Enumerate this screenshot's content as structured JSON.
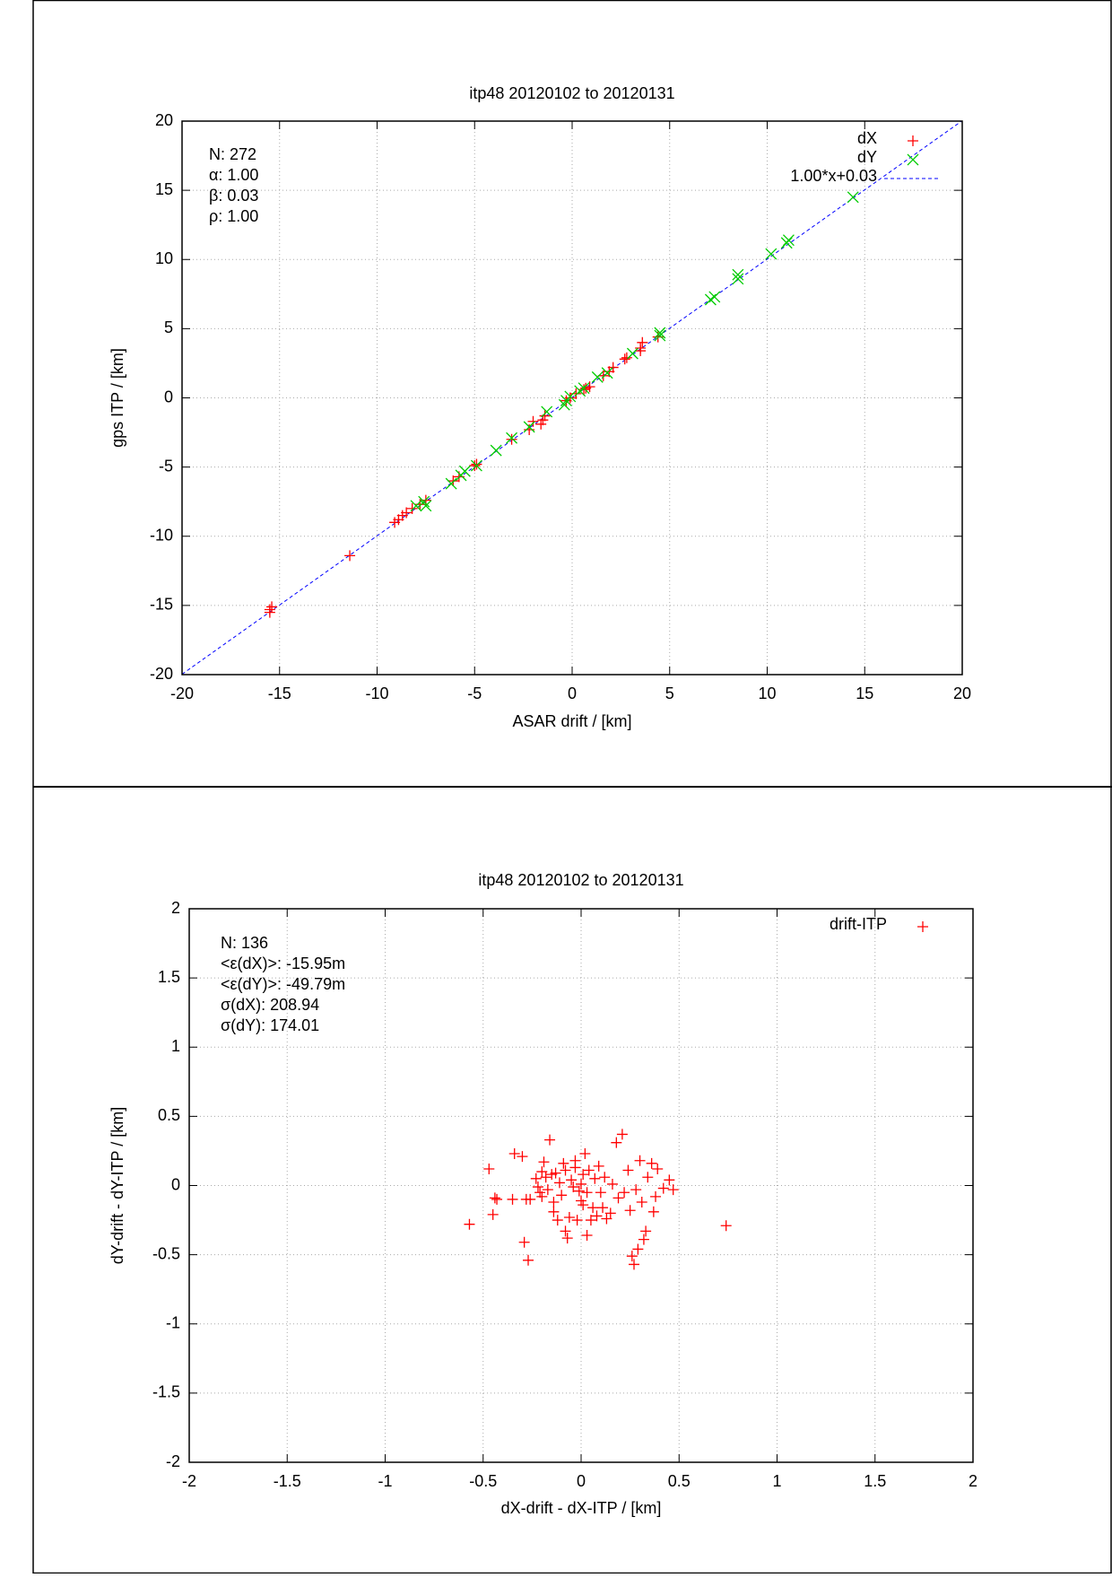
{
  "chart_data": [
    {
      "type": "scatter",
      "title": "itp48 20120102 to 20120131",
      "x_label": "ASAR drift / [km]",
      "y_label": "gps ITP / [km]",
      "xlim": [
        -20,
        20
      ],
      "ylim": [
        -20,
        20
      ],
      "xticks": [
        -20,
        -15,
        -10,
        -5,
        0,
        5,
        10,
        15,
        20
      ],
      "yticks": [
        -20,
        -15,
        -10,
        -5,
        0,
        5,
        10,
        15,
        20
      ],
      "grid": true,
      "legend": "top-right",
      "annotations": [
        "N: 272",
        "α: 1.00",
        "β: 0.03",
        "ρ: 1.00"
      ],
      "series": [
        {
          "name": "dX",
          "color": "#ff0000",
          "marker": "plus",
          "x": [
            -15.5,
            -15.5,
            -15.4,
            -11.4,
            -9.1,
            -8.9,
            -8.7,
            -8.5,
            -8.2,
            -7.8,
            -7.5,
            -6.1,
            -5.8,
            -5.0,
            -4.9,
            -3.1,
            -2.2,
            -2.0,
            -1.6,
            -1.5,
            -1.4,
            -0.3,
            0.2,
            0.7,
            0.9,
            1.6,
            1.9,
            2.1,
            2.7,
            2.8,
            3.5,
            3.6,
            3.5,
            4.4,
            0.6,
            -0.1
          ],
          "values": [
            -15.3,
            -15.5,
            -15.1,
            -11.4,
            -9.0,
            -8.8,
            -8.5,
            -8.3,
            -8.0,
            -7.7,
            -7.4,
            -6.0,
            -5.7,
            -4.9,
            -4.8,
            -3.0,
            -2.3,
            -1.7,
            -1.9,
            -1.6,
            -1.3,
            -0.2,
            0.3,
            0.7,
            0.8,
            1.6,
            1.9,
            2.2,
            2.8,
            2.9,
            3.6,
            4.0,
            3.4,
            4.4,
            0.6,
            0.0
          ]
        },
        {
          "name": "dY",
          "color": "#00cc00",
          "marker": "cross",
          "x": [
            -7.6,
            -7.5,
            -6.2,
            -5.7,
            -5.5,
            -3.9,
            -3.1,
            -2.2,
            -1.3,
            -0.3,
            -0.1,
            0.4,
            0.6,
            1.3,
            1.8,
            3.1,
            4.5,
            4.5,
            7.1,
            7.3,
            8.5,
            8.5,
            10.2,
            11.0,
            11.1,
            14.4,
            -4.9,
            -8.0,
            -0.4
          ],
          "values": [
            -7.5,
            -7.8,
            -6.2,
            -5.6,
            -5.3,
            -3.8,
            -2.9,
            -2.1,
            -1.0,
            -0.2,
            0.1,
            0.5,
            0.7,
            1.5,
            1.8,
            3.2,
            4.5,
            4.7,
            7.1,
            7.3,
            8.6,
            8.9,
            10.4,
            11.2,
            11.4,
            14.5,
            -4.9,
            -7.8,
            -0.5
          ]
        }
      ],
      "fit": {
        "name": "1.00*x+0.03",
        "color": "#0000ff",
        "slope": 1.0,
        "intercept": 0.03
      }
    },
    {
      "type": "scatter",
      "title": "itp48 20120102 to 20120131",
      "x_label": "dX-drift - dX-ITP / [km]",
      "y_label": "dY-drift - dY-ITP / [km]",
      "xlim": [
        -2,
        2
      ],
      "ylim": [
        -2,
        2
      ],
      "xticks": [
        -2,
        -1.5,
        -1,
        -0.5,
        0,
        0.5,
        1,
        1.5,
        2
      ],
      "yticks": [
        -2,
        -1.5,
        -1,
        -0.5,
        0,
        0.5,
        1,
        1.5,
        2
      ],
      "grid": true,
      "legend": "top-right",
      "annotations": [
        "N: 136",
        "<ε(dX)>:  -15.95m",
        "<ε(dY)>: -49.79m",
        "σ(dX):  208.94",
        "σ(dY):  174.01"
      ],
      "series": [
        {
          "name": "drift-ITP",
          "color": "#ff0000",
          "marker": "plus",
          "x": [
            -0.57,
            -0.47,
            -0.44,
            -0.45,
            -0.43,
            -0.35,
            -0.34,
            -0.3,
            -0.29,
            -0.28,
            -0.27,
            -0.26,
            -0.23,
            -0.22,
            -0.21,
            -0.2,
            -0.19,
            -0.18,
            -0.17,
            -0.16,
            -0.15,
            -0.14,
            -0.14,
            -0.13,
            -0.12,
            -0.11,
            -0.1,
            -0.09,
            -0.08,
            -0.08,
            -0.07,
            -0.06,
            -0.05,
            -0.04,
            -0.03,
            -0.03,
            -0.02,
            -0.01,
            0.0,
            0.01,
            0.01,
            0.02,
            0.03,
            0.03,
            0.04,
            0.05,
            0.06,
            0.07,
            0.08,
            0.09,
            0.1,
            0.11,
            0.12,
            0.13,
            0.15,
            0.16,
            0.18,
            0.19,
            0.21,
            0.22,
            0.24,
            0.25,
            0.26,
            0.27,
            0.28,
            0.29,
            0.3,
            0.31,
            0.32,
            0.33,
            0.34,
            0.36,
            0.37,
            0.38,
            0.39,
            0.42,
            0.45,
            0.47,
            0.74,
            -0.2,
            0.0
          ],
          "values": [
            -0.28,
            0.12,
            -0.09,
            -0.21,
            -0.1,
            -0.1,
            0.23,
            0.21,
            -0.41,
            -0.1,
            -0.54,
            -0.1,
            0.05,
            -0.01,
            -0.05,
            0.1,
            0.17,
            0.06,
            -0.03,
            0.33,
            0.08,
            -0.12,
            -0.19,
            0.09,
            -0.25,
            0.02,
            -0.07,
            0.16,
            -0.33,
            0.11,
            -0.38,
            -0.23,
            0.04,
            -0.01,
            0.18,
            0.13,
            -0.25,
            -0.04,
            0.01,
            0.08,
            -0.14,
            0.23,
            -0.36,
            -0.05,
            0.11,
            -0.25,
            -0.16,
            0.05,
            -0.22,
            0.14,
            -0.05,
            -0.16,
            0.06,
            -0.24,
            -0.2,
            0.01,
            0.31,
            -0.09,
            0.37,
            -0.05,
            0.11,
            -0.18,
            -0.51,
            -0.57,
            -0.03,
            -0.46,
            0.18,
            -0.12,
            -0.39,
            -0.33,
            0.06,
            0.16,
            -0.19,
            -0.08,
            0.12,
            -0.02,
            0.04,
            -0.03,
            -0.29,
            -0.08,
            -0.11
          ]
        }
      ]
    }
  ]
}
